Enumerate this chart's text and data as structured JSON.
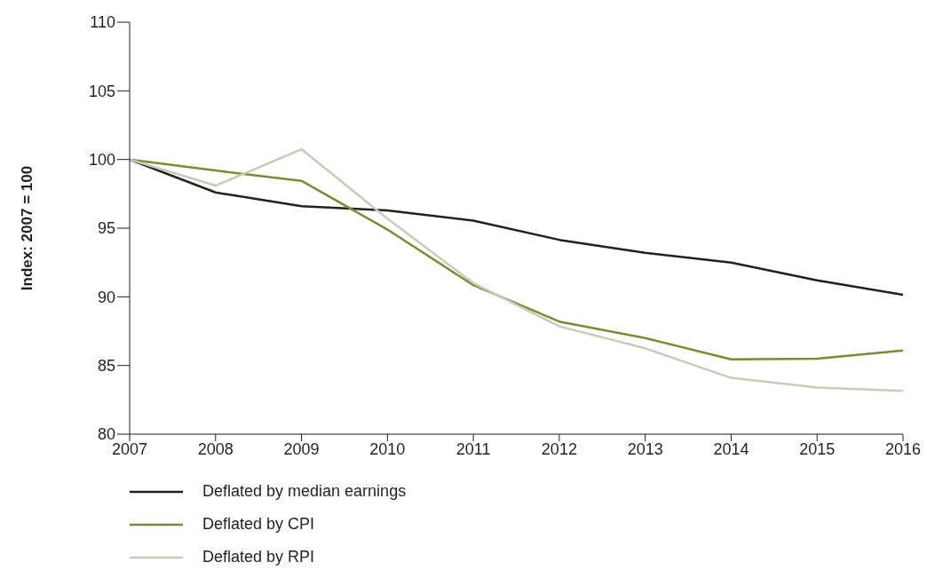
{
  "chart_data": {
    "type": "line",
    "ylabel": "Index: 2007 = 100",
    "categories": [
      "2007",
      "2008",
      "2009",
      "2010",
      "2011",
      "2012",
      "2013",
      "2014",
      "2015",
      "2016"
    ],
    "series": [
      {
        "name": "Deflated by median earnings",
        "color": "#231f20",
        "values": [
          100,
          97.6,
          96.6,
          96.3,
          95.55,
          94.15,
          93.2,
          92.5,
          91.2,
          90.15
        ]
      },
      {
        "name": "Deflated by CPI",
        "color": "#7a8c32",
        "values": [
          100,
          99.2,
          98.45,
          94.9,
          90.85,
          88.2,
          87.0,
          85.45,
          85.5,
          86.1
        ]
      },
      {
        "name": "Deflated by RPI",
        "color": "#c8cbb8",
        "values": [
          100,
          98.1,
          100.75,
          95.7,
          91.0,
          87.85,
          86.25,
          84.1,
          83.4,
          83.15
        ]
      }
    ],
    "ylim": [
      80,
      110
    ],
    "yticks": [
      80,
      85,
      90,
      95,
      100,
      105,
      110
    ],
    "grid": false,
    "legend": "bottom",
    "marker": "none",
    "line_style": "solid"
  }
}
